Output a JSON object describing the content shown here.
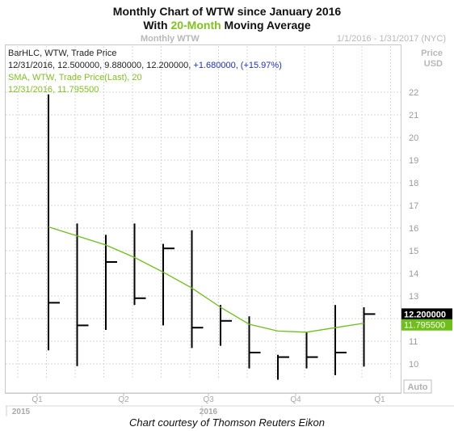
{
  "title": {
    "line1": "Monthly Chart of WTW since January 2016",
    "line2_prefix": "With ",
    "line2_highlight": "20-Month",
    "line2_suffix": " Moving Average"
  },
  "header": {
    "center_label": "Monthly WTW",
    "range_label": "1/1/2016 - 1/31/2017 (NYC)",
    "axis_unit_line1": "Price",
    "axis_unit_line2": "USD"
  },
  "info": {
    "line1": "BarHLC, WTW, Trade Price",
    "line2_values": "12/31/2016, 12.500000, 9.880000, 12.200000, ",
    "line2_change": "+1.680000, (+15.97%)",
    "line3": "SMA, WTW, Trade Price(Last),  20",
    "line4": "12/31/2016, 11.795500"
  },
  "auto_label": "Auto",
  "credit": "Chart courtesy of Thomson Reuters Eikon",
  "colors": {
    "bars": "#000000",
    "sma": "#6cc017",
    "grid": "#d9d9d9",
    "last_price_badge": "#000000",
    "sma_badge": "#6cc017"
  },
  "chart_data": {
    "type": "line",
    "series": [
      {
        "type": "ohlc_hlc_bars",
        "x": [
          "2016-01",
          "2016-02",
          "2016-03",
          "2016-04",
          "2016-05",
          "2016-06",
          "2016-07",
          "2016-08",
          "2016-09",
          "2016-10",
          "2016-11",
          "2016-12"
        ],
        "high": [
          21.9,
          16.2,
          15.7,
          16.2,
          15.3,
          15.9,
          12.6,
          12.1,
          10.4,
          11.4,
          12.6,
          12.5
        ],
        "low": [
          10.6,
          9.9,
          11.5,
          12.6,
          11.7,
          10.7,
          10.8,
          9.8,
          9.3,
          9.8,
          9.5,
          9.88
        ],
        "close": [
          12.7,
          11.7,
          14.5,
          12.9,
          15.1,
          11.6,
          11.9,
          10.5,
          10.3,
          10.3,
          10.5,
          12.2
        ]
      },
      {
        "name": "SMA",
        "x": [
          "2016-01",
          "2016-02",
          "2016-03",
          "2016-04",
          "2016-05",
          "2016-06",
          "2016-07",
          "2016-08",
          "2016-09",
          "2016-10",
          "2016-11",
          "2016-12"
        ],
        "values": [
          16.05,
          15.65,
          15.25,
          14.7,
          14.05,
          13.35,
          12.5,
          11.75,
          11.45,
          11.4,
          11.6,
          11.7955
        ]
      }
    ],
    "y_axis": {
      "ticks": [
        10,
        11,
        12,
        13,
        14,
        15,
        16,
        17,
        18,
        19,
        20,
        21,
        22
      ],
      "range": [
        9.0,
        23.0
      ],
      "position": "right"
    },
    "x_axis": {
      "quarter_labels": [
        "Q1",
        "Q2",
        "Q3",
        "Q4",
        "Q1"
      ],
      "year_labels": [
        "2015",
        "2016"
      ]
    },
    "badges": {
      "last_price": "12.200000",
      "sma_value": "11.795500"
    },
    "grid": true
  }
}
